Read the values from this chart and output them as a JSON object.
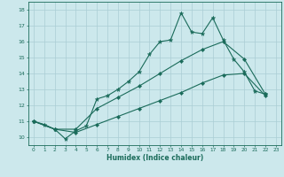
{
  "xlabel": "Humidex (Indice chaleur)",
  "xlim": [
    -0.5,
    23.5
  ],
  "ylim": [
    9.5,
    18.5
  ],
  "xticks": [
    0,
    1,
    2,
    3,
    4,
    5,
    6,
    7,
    8,
    9,
    10,
    11,
    12,
    13,
    14,
    15,
    16,
    17,
    18,
    19,
    20,
    21,
    22,
    23
  ],
  "yticks": [
    10,
    11,
    12,
    13,
    14,
    15,
    16,
    17,
    18
  ],
  "bg_color": "#cce8ec",
  "grid_color": "#aacdd4",
  "line_color": "#1a6b5a",
  "line1_x": [
    0,
    1,
    2,
    3,
    4,
    5,
    6,
    7,
    8,
    9,
    10,
    11,
    12,
    13,
    14,
    15,
    16,
    17,
    18,
    19,
    20,
    21,
    22
  ],
  "line1_y": [
    11.0,
    10.8,
    10.5,
    9.9,
    10.4,
    10.7,
    12.4,
    12.6,
    13.0,
    13.5,
    14.1,
    15.2,
    16.0,
    16.1,
    17.8,
    16.6,
    16.5,
    17.5,
    16.1,
    14.9,
    14.1,
    12.9,
    12.7
  ],
  "line2_x": [
    0,
    2,
    4,
    6,
    8,
    10,
    12,
    14,
    16,
    18,
    20,
    22
  ],
  "line2_y": [
    11.0,
    10.5,
    10.5,
    11.8,
    12.5,
    13.2,
    14.0,
    14.8,
    15.5,
    16.0,
    14.9,
    12.7
  ],
  "line3_x": [
    0,
    2,
    4,
    6,
    8,
    10,
    12,
    14,
    16,
    18,
    20,
    22
  ],
  "line3_y": [
    11.0,
    10.5,
    10.3,
    10.8,
    11.3,
    11.8,
    12.3,
    12.8,
    13.4,
    13.9,
    14.0,
    12.6
  ]
}
